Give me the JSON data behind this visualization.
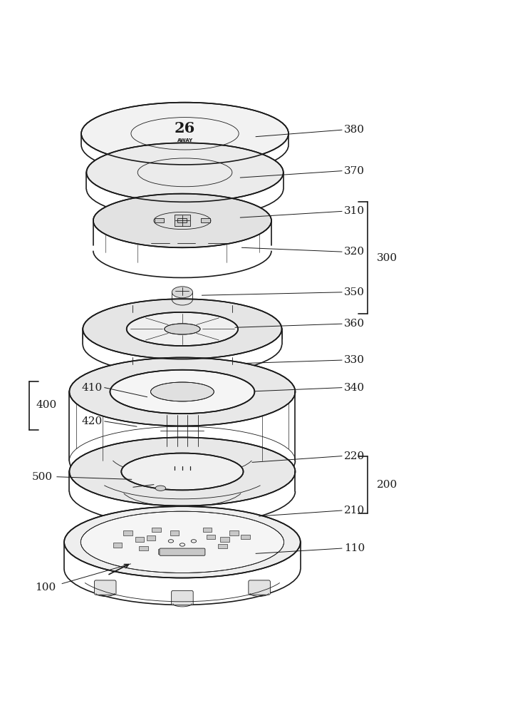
{
  "bg_color": "#ffffff",
  "line_color": "#1a1a1a",
  "line_width": 1.2,
  "thin_line": 0.6,
  "fig_width": 7.3,
  "fig_height": 10.0
}
